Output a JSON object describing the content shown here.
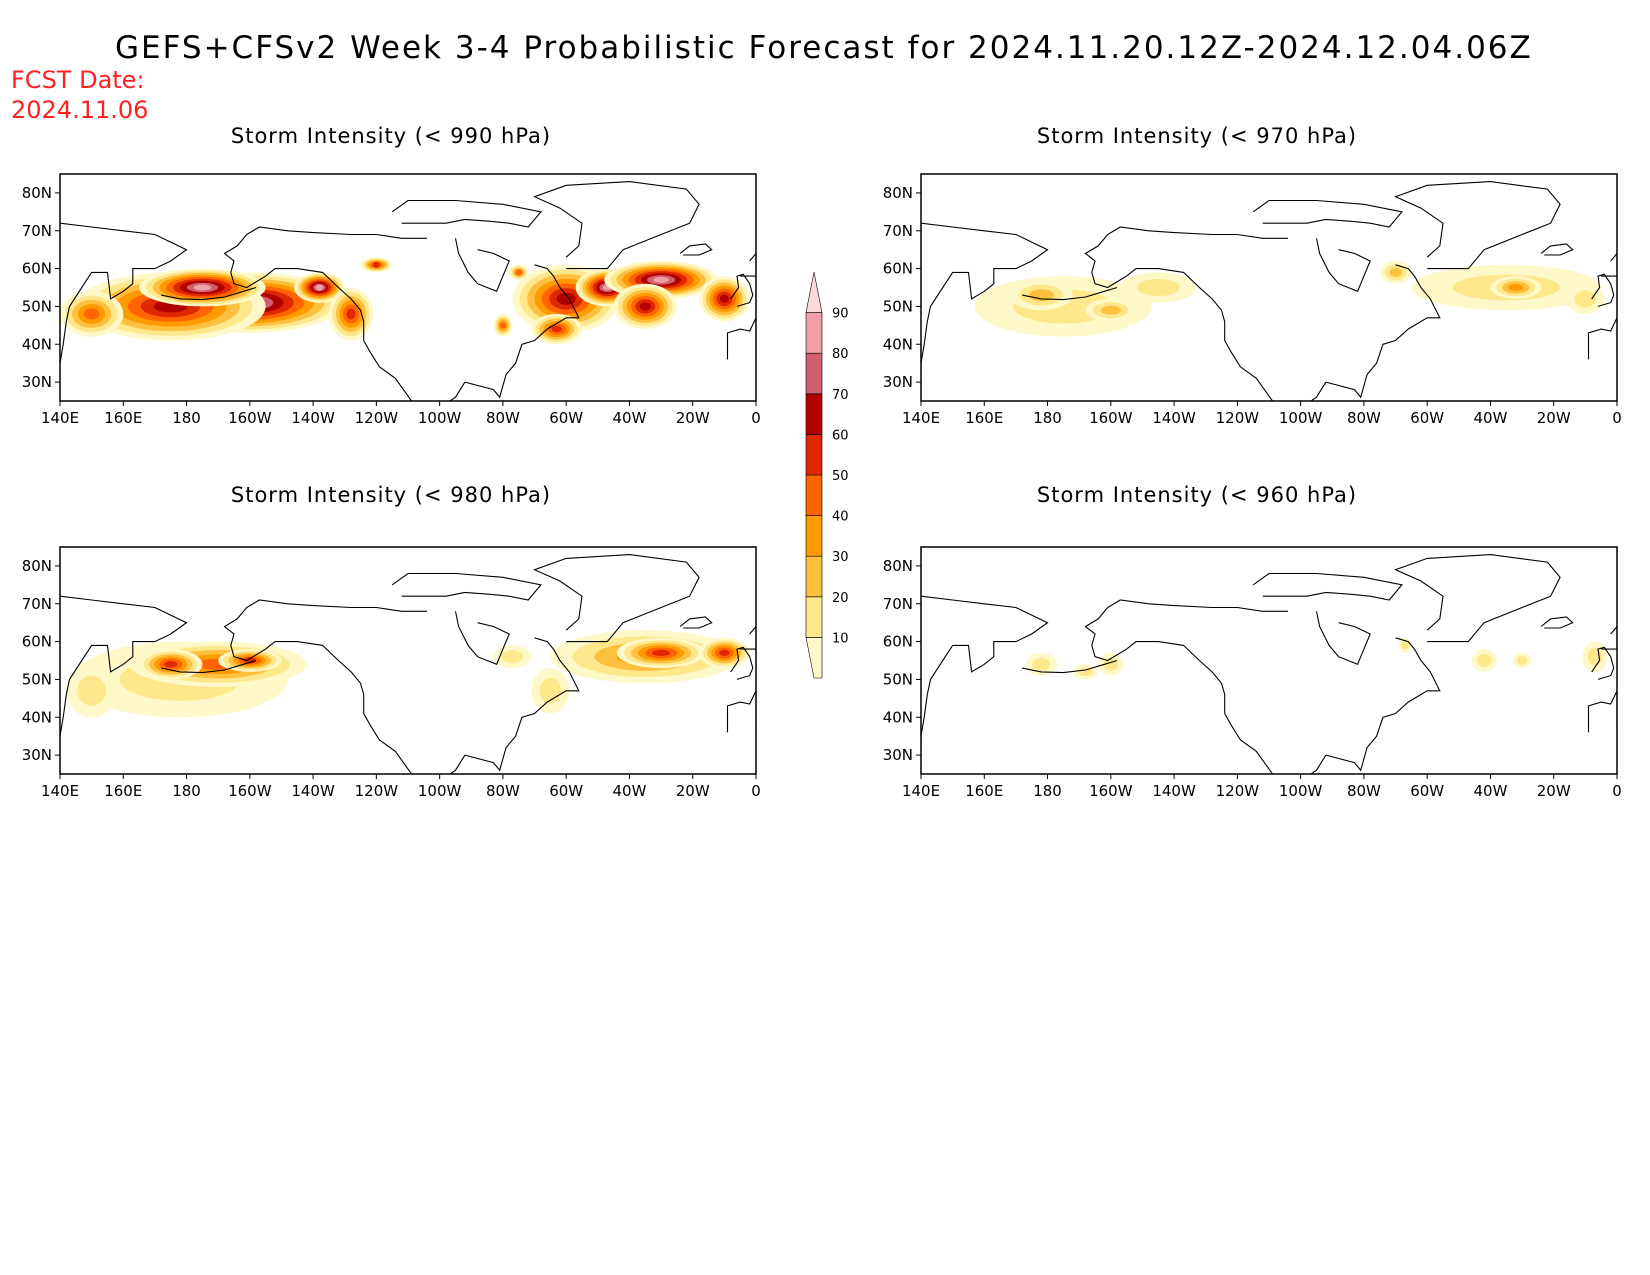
{
  "title": "GEFS+CFSv2 Week 3-4 Probabilistic Forecast for 2024.11.20.12Z-2024.12.04.06Z",
  "fcst_label": "FCST Date:",
  "fcst_date": "2024.11.06",
  "colorbar": {
    "levels": [
      "10",
      "20",
      "30",
      "40",
      "50",
      "60",
      "70",
      "80",
      "90"
    ],
    "colors": [
      "#fff8c8",
      "#ffe88c",
      "#ffc040",
      "#ff9a00",
      "#ff6400",
      "#e02800",
      "#b00000",
      "#d06070",
      "#f0a0a8",
      "#fcd8dc"
    ]
  },
  "axes": {
    "lon_labels": [
      "140E",
      "160E",
      "180",
      "160W",
      "140W",
      "120W",
      "100W",
      "80W",
      "60W",
      "40W",
      "20W",
      "0"
    ],
    "lat_labels": [
      "80N",
      "70N",
      "60N",
      "50N",
      "40N",
      "30N"
    ],
    "lon_range": [
      140,
      360
    ],
    "lat_range": [
      25,
      85
    ]
  },
  "panels": [
    {
      "id": "p990",
      "title": "Storm Intensity (< 990 hPa)",
      "blobs": [
        {
          "lon": 200,
          "lat": 51,
          "rlon": 30,
          "rlat": 8,
          "cat": 8
        },
        {
          "lon": 175,
          "lat": 50,
          "rlon": 30,
          "rlat": 9,
          "cat": 6
        },
        {
          "lon": 185,
          "lat": 55,
          "rlon": 20,
          "rlat": 5,
          "cat": 8
        },
        {
          "lon": 150,
          "lat": 48,
          "rlon": 10,
          "rlat": 6,
          "cat": 4
        },
        {
          "lon": 222,
          "lat": 55,
          "rlon": 8,
          "rlat": 4,
          "cat": 8
        },
        {
          "lon": 232,
          "lat": 48,
          "rlon": 7,
          "rlat": 7,
          "cat": 5
        },
        {
          "lon": 240,
          "lat": 61,
          "rlon": 5,
          "rlat": 2,
          "cat": 5
        },
        {
          "lon": 285,
          "lat": 59,
          "rlon": 3,
          "rlat": 2,
          "cat": 4
        },
        {
          "lon": 280,
          "lat": 45,
          "rlon": 3,
          "rlat": 3,
          "cat": 4
        },
        {
          "lon": 300,
          "lat": 52,
          "rlon": 17,
          "rlat": 9,
          "cat": 6
        },
        {
          "lon": 313,
          "lat": 55,
          "rlon": 10,
          "rlat": 5,
          "cat": 8
        },
        {
          "lon": 330,
          "lat": 57,
          "rlon": 18,
          "rlat": 5,
          "cat": 8
        },
        {
          "lon": 325,
          "lat": 50,
          "rlon": 10,
          "rlat": 6,
          "cat": 6
        },
        {
          "lon": 350,
          "lat": 52,
          "rlon": 8,
          "rlat": 6,
          "cat": 6
        },
        {
          "lon": 297,
          "lat": 44,
          "rlon": 8,
          "rlat": 4,
          "cat": 5
        }
      ]
    },
    {
      "id": "p970",
      "title": "Storm Intensity (< 970 hPa)",
      "blobs": [
        {
          "lon": 185,
          "lat": 50,
          "rlon": 28,
          "rlat": 8,
          "cat": 1
        },
        {
          "lon": 178,
          "lat": 53,
          "rlon": 10,
          "rlat": 4,
          "cat": 2
        },
        {
          "lon": 200,
          "lat": 49,
          "rlon": 8,
          "rlat": 3,
          "cat": 2
        },
        {
          "lon": 215,
          "lat": 55,
          "rlon": 12,
          "rlat": 4,
          "cat": 1
        },
        {
          "lon": 325,
          "lat": 55,
          "rlon": 30,
          "rlat": 6,
          "cat": 1
        },
        {
          "lon": 328,
          "lat": 55,
          "rlon": 8,
          "rlat": 3,
          "cat": 3
        },
        {
          "lon": 290,
          "lat": 59,
          "rlon": 5,
          "rlat": 3,
          "cat": 2
        },
        {
          "lon": 350,
          "lat": 52,
          "rlon": 6,
          "rlat": 4,
          "cat": 1
        }
      ]
    },
    {
      "id": "p980",
      "title": "Storm Intensity (< 980 hPa)",
      "blobs": [
        {
          "lon": 178,
          "lat": 50,
          "rlon": 34,
          "rlat": 10,
          "cat": 1
        },
        {
          "lon": 190,
          "lat": 54,
          "rlon": 28,
          "rlat": 6,
          "cat": 4
        },
        {
          "lon": 175,
          "lat": 54,
          "rlon": 10,
          "rlat": 4,
          "cat": 5
        },
        {
          "lon": 200,
          "lat": 55,
          "rlon": 10,
          "rlat": 3,
          "cat": 5
        },
        {
          "lon": 150,
          "lat": 47,
          "rlon": 8,
          "rlat": 7,
          "cat": 1
        },
        {
          "lon": 283,
          "lat": 56,
          "rlon": 6,
          "rlat": 3,
          "cat": 1
        },
        {
          "lon": 295,
          "lat": 47,
          "rlon": 6,
          "rlat": 6,
          "cat": 1
        },
        {
          "lon": 325,
          "lat": 56,
          "rlon": 30,
          "rlat": 7,
          "cat": 3
        },
        {
          "lon": 330,
          "lat": 57,
          "rlon": 14,
          "rlat": 4,
          "cat": 5
        },
        {
          "lon": 350,
          "lat": 57,
          "rlon": 8,
          "rlat": 4,
          "cat": 5
        }
      ]
    },
    {
      "id": "p960",
      "title": "Storm Intensity (< 960 hPa)",
      "blobs": [
        {
          "lon": 178,
          "lat": 54,
          "rlon": 5,
          "rlat": 3,
          "cat": 1
        },
        {
          "lon": 192,
          "lat": 52,
          "rlon": 4,
          "rlat": 2,
          "cat": 1
        },
        {
          "lon": 200,
          "lat": 54,
          "rlon": 4,
          "rlat": 3,
          "cat": 1
        },
        {
          "lon": 318,
          "lat": 55,
          "rlon": 4,
          "rlat": 3,
          "cat": 1
        },
        {
          "lon": 330,
          "lat": 55,
          "rlon": 3,
          "rlat": 2,
          "cat": 1
        },
        {
          "lon": 353,
          "lat": 56,
          "rlon": 4,
          "rlat": 4,
          "cat": 1
        },
        {
          "lon": 293,
          "lat": 59,
          "rlon": 2,
          "rlat": 2,
          "cat": 1
        }
      ]
    }
  ]
}
